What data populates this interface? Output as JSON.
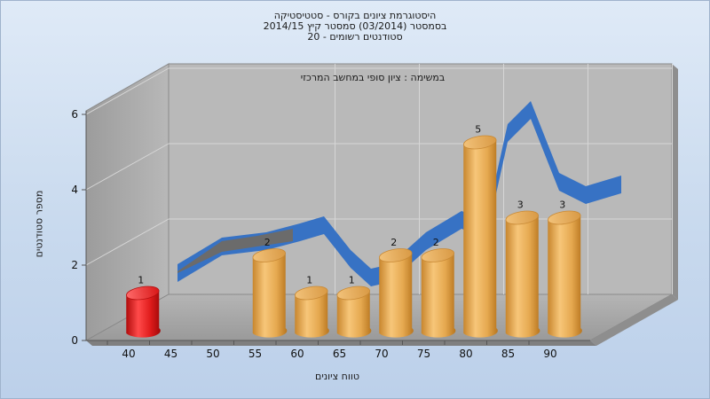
{
  "chart_data": {
    "type": "bar",
    "title_lines": [
      "היסטוגרמת ציונים בקורס - סטטיסטיקה",
      "בסמסטר  (03/2014)  סמסטר קיץ 2014/15",
      "סטודנטים רשומים - 20"
    ],
    "subtitle": "במשימה : ציון סופי במחשב המרכזי",
    "xlabel": "טווח ציונים",
    "ylabel": "מספר סטודנטים",
    "ylim": [
      0,
      6
    ],
    "yticks": [
      0,
      2,
      4,
      6
    ],
    "xticks": [
      "40",
      "45",
      "50",
      "55",
      "60",
      "65",
      "70",
      "75",
      "80",
      "85",
      "90"
    ],
    "bins": [
      {
        "from": 40,
        "to": 45,
        "value": 1,
        "color": "#d81818"
      },
      {
        "from": 55,
        "to": 60,
        "value": 2,
        "color": "#e3a24a"
      },
      {
        "from": 60,
        "to": 65,
        "value": 1,
        "color": "#e3a24a"
      },
      {
        "from": 65,
        "to": 70,
        "value": 1,
        "color": "#e3a24a"
      },
      {
        "from": 70,
        "to": 75,
        "value": 2,
        "color": "#e3a24a"
      },
      {
        "from": 75,
        "to": 80,
        "value": 2,
        "color": "#e3a24a"
      },
      {
        "from": 80,
        "to": 85,
        "value": 5,
        "color": "#e3a24a"
      },
      {
        "from": 85,
        "to": 90,
        "value": 3,
        "color": "#e3a24a"
      },
      {
        "from": 90,
        "to": 95,
        "value": 3,
        "color": "#e3a24a"
      }
    ],
    "curve_color": "#2f6ec4",
    "grid": true
  }
}
